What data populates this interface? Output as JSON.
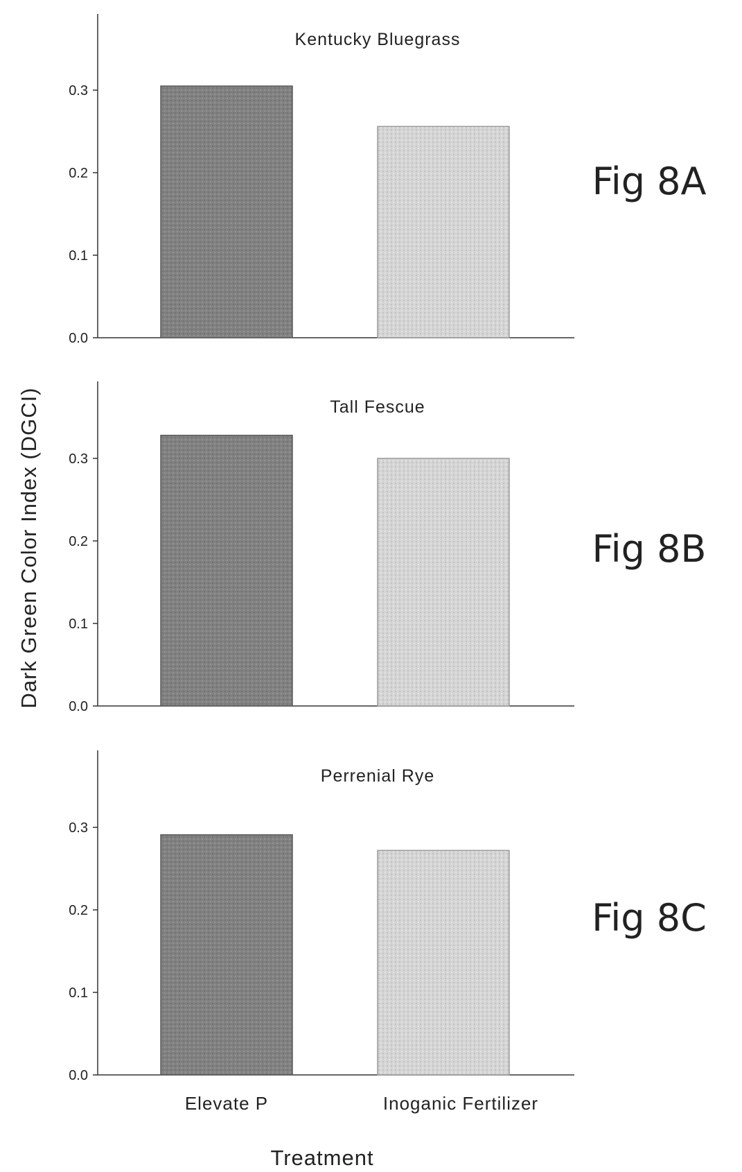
{
  "ylabel": "Dark Green Color Index (DGCI)",
  "xlabel": "Treatment",
  "categories": [
    "Elevate P",
    "Inoganic Fertilizer"
  ],
  "colors": {
    "bar_dark": "#7d7d7d",
    "bar_light": "#cfcfcf",
    "axis": "#333333"
  },
  "chart_data": [
    {
      "type": "bar",
      "title": "Kentucky Bluegrass",
      "figure_label": "Fig 8A",
      "categories": [
        "Elevate P",
        "Inoganic Fertilizer"
      ],
      "values": [
        0.305,
        0.256
      ],
      "ylim": [
        0,
        0.3
      ],
      "yticks": [
        "0.0",
        "0.1",
        "0.2",
        "0.3"
      ],
      "ylabel": "Dark Green Color Index (DGCI)",
      "xlabel": "Treatment",
      "grid": false
    },
    {
      "type": "bar",
      "title": "Tall Fescue",
      "figure_label": "Fig 8B",
      "categories": [
        "Elevate P",
        "Inoganic Fertilizer"
      ],
      "values": [
        0.328,
        0.3
      ],
      "ylim": [
        0,
        0.3
      ],
      "yticks": [
        "0.0",
        "0.1",
        "0.2",
        "0.3"
      ],
      "ylabel": "Dark Green Color Index (DGCI)",
      "xlabel": "Treatment",
      "grid": false
    },
    {
      "type": "bar",
      "title": "Perrenial Rye",
      "figure_label": "Fig 8C",
      "categories": [
        "Elevate P",
        "Inoganic Fertilizer"
      ],
      "values": [
        0.291,
        0.272
      ],
      "ylim": [
        0,
        0.3
      ],
      "yticks": [
        "0.0",
        "0.1",
        "0.2",
        "0.3"
      ],
      "ylabel": "Dark Green Color Index (DGCI)",
      "xlabel": "Treatment",
      "grid": false
    }
  ]
}
